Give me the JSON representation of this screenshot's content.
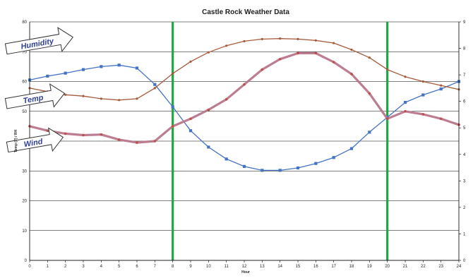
{
  "chart_data": {
    "type": "line",
    "title": "Castle Rock Weather Data",
    "xlabel": "Hour",
    "ylabel_left": "Temp (F) / RH",
    "x": [
      0,
      1,
      2,
      3,
      4,
      5,
      6,
      7,
      8,
      9,
      10,
      11,
      12,
      13,
      14,
      15,
      16,
      17,
      18,
      19,
      20,
      21,
      22,
      23,
      24
    ],
    "xlim": [
      0,
      24
    ],
    "ylim_left": [
      0,
      80
    ],
    "ylim_right": [
      0,
      9
    ],
    "yticks_left": [
      0,
      10,
      20,
      30,
      40,
      50,
      60,
      70,
      80
    ],
    "yticks_right": [
      0,
      1,
      2,
      3,
      4,
      5,
      6,
      7,
      8,
      9
    ],
    "grid": true,
    "vertical_markers": [
      8,
      20
    ],
    "series": [
      {
        "name": "Humidity",
        "color": "#4472c4",
        "marker": "square",
        "values": [
          60.5,
          61.8,
          62.8,
          64,
          65,
          65.5,
          64.5,
          59,
          51.5,
          43.5,
          38,
          34,
          31.5,
          30.2,
          30.2,
          31,
          32.5,
          34.5,
          37.5,
          43,
          48,
          53,
          55.5,
          57.5,
          60
        ]
      },
      {
        "name": "Temp",
        "color": "#c0504d",
        "marker": "circle",
        "values": [
          45,
          43.5,
          42.5,
          42,
          42.2,
          40.5,
          39.5,
          40,
          45,
          47.5,
          50.5,
          54,
          59,
          64,
          67.5,
          69.5,
          69.5,
          66.5,
          62.5,
          56,
          47.5,
          50,
          49,
          47.5,
          45.5
        ]
      },
      {
        "name": "Wind",
        "color": "#a65a3a",
        "marker": "dot",
        "axis": "right",
        "values": [
          6.5,
          6.37,
          6.25,
          6.2,
          6.1,
          6.05,
          6.1,
          6.5,
          7.05,
          7.5,
          7.85,
          8.1,
          8.27,
          8.35,
          8.37,
          8.35,
          8.3,
          8.2,
          7.95,
          7.65,
          7.2,
          6.93,
          6.75,
          6.6,
          6.45
        ]
      }
    ],
    "annotations": [
      {
        "text": "Humidity",
        "series": "Humidity"
      },
      {
        "text": "Temp",
        "series": "Temp"
      },
      {
        "text": "Wind",
        "series": "Wind"
      }
    ],
    "colors": {
      "marker_line": "#1aa843",
      "grid": "#000000"
    }
  }
}
